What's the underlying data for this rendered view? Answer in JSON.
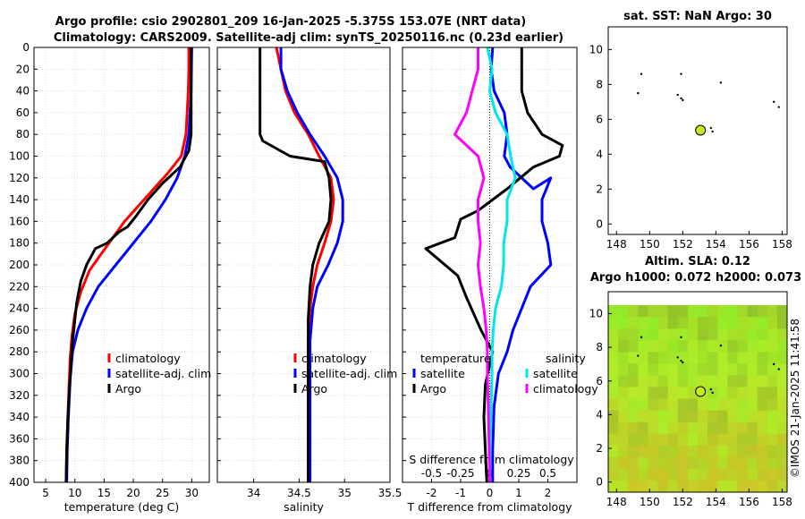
{
  "figure": {
    "title_line1": "Argo profile: csio 2902801_209 16-Jan-2025 -5.375S 153.07E (NRT data)",
    "title_line2": "Climatology: CARS2009. Satellite-adj clim: synTS_20250116.nc (0.23d earlier)",
    "side_label": "©IMOS 21-Jan-2025 11:41:58"
  },
  "colors": {
    "climatology": "#ff0000",
    "satellite": "#0000ff",
    "argo": "#000000",
    "s_satellite": "#00e5ee",
    "s_climatology": "#ff00ff",
    "marker": "#c8e820",
    "map_fill": "#b4e62a"
  },
  "chart_data": [
    {
      "type": "line",
      "id": "temperature",
      "xlabel": "temperature (deg C)",
      "ylabel": "",
      "xlim": [
        3,
        33
      ],
      "ylim": [
        400,
        0
      ],
      "xticks": [
        "5",
        "10",
        "15",
        "20",
        "25",
        "30"
      ],
      "yticks": [
        "0",
        "20",
        "40",
        "60",
        "80",
        "100",
        "120",
        "140",
        "160",
        "180",
        "200",
        "220",
        "240",
        "260",
        "280",
        "300",
        "320",
        "340",
        "360",
        "380",
        "400"
      ],
      "legend": [
        "climatology",
        "satellite-adj. clim",
        "Argo"
      ],
      "series": [
        {
          "name": "climatology",
          "color_key": "climatology",
          "points": [
            [
              29.5,
              0
            ],
            [
              29.5,
              20
            ],
            [
              29.4,
              40
            ],
            [
              29.2,
              60
            ],
            [
              29.0,
              80
            ],
            [
              28.2,
              100
            ],
            [
              26,
              115
            ],
            [
              23.5,
              130
            ],
            [
              21,
              145
            ],
            [
              18.5,
              160
            ],
            [
              16.5,
              175
            ],
            [
              14.5,
              190
            ],
            [
              12.5,
              205
            ],
            [
              11,
              225
            ],
            [
              10,
              245
            ],
            [
              9.5,
              265
            ],
            [
              9.2,
              285
            ],
            [
              9.0,
              310
            ],
            [
              8.8,
              340
            ],
            [
              8.6,
              370
            ],
            [
              8.5,
              400
            ]
          ]
        },
        {
          "name": "satellite-adj. clim",
          "color_key": "satellite",
          "points": [
            [
              30.0,
              0
            ],
            [
              29.9,
              40
            ],
            [
              29.7,
              60
            ],
            [
              29.5,
              80
            ],
            [
              28.8,
              100
            ],
            [
              27.5,
              120
            ],
            [
              25.5,
              140
            ],
            [
              23,
              160
            ],
            [
              20,
              180
            ],
            [
              17,
              200
            ],
            [
              14,
              220
            ],
            [
              12,
              240
            ],
            [
              10.5,
              260
            ],
            [
              9.6,
              280
            ],
            [
              9.2,
              305
            ],
            [
              8.9,
              340
            ],
            [
              8.7,
              370
            ],
            [
              8.6,
              400
            ]
          ]
        },
        {
          "name": "Argo",
          "color_key": "argo",
          "points": [
            [
              29.9,
              0
            ],
            [
              29.9,
              20
            ],
            [
              29.9,
              40
            ],
            [
              29.9,
              60
            ],
            [
              29.9,
              80
            ],
            [
              29.5,
              95
            ],
            [
              28,
              110
            ],
            [
              25,
              125
            ],
            [
              22.5,
              140
            ],
            [
              20.5,
              155
            ],
            [
              19,
              165
            ],
            [
              17.5,
              170
            ],
            [
              15.5,
              180
            ],
            [
              13.5,
              185
            ],
            [
              12,
              200
            ],
            [
              11,
              215
            ],
            [
              10.3,
              235
            ],
            [
              9.9,
              255
            ],
            [
              9.6,
              270
            ],
            [
              9.4,
              285
            ],
            [
              9.1,
              310
            ],
            [
              8.8,
              340
            ],
            [
              8.6,
              370
            ],
            [
              8.5,
              400
            ]
          ]
        }
      ]
    },
    {
      "type": "line",
      "id": "salinity",
      "xlabel": "salinity",
      "ylabel": "",
      "xlim": [
        33.6,
        35.5
      ],
      "ylim": [
        400,
        0
      ],
      "xticks": [
        "34",
        "34.5",
        "35",
        "35.5"
      ],
      "legend": [
        "climatology",
        "satellite-adj. clim",
        "Argo"
      ],
      "series": [
        {
          "name": "climatology",
          "color_key": "climatology",
          "points": [
            [
              34.25,
              0
            ],
            [
              34.3,
              20
            ],
            [
              34.35,
              40
            ],
            [
              34.45,
              60
            ],
            [
              34.6,
              80
            ],
            [
              34.72,
              100
            ],
            [
              34.85,
              120
            ],
            [
              34.88,
              140
            ],
            [
              34.85,
              160
            ],
            [
              34.78,
              180
            ],
            [
              34.7,
              200
            ],
            [
              34.65,
              220
            ],
            [
              34.62,
              240
            ],
            [
              34.6,
              270
            ],
            [
              34.6,
              300
            ],
            [
              34.6,
              340
            ],
            [
              34.6,
              400
            ]
          ]
        },
        {
          "name": "satellite-adj. clim",
          "color_key": "satellite",
          "points": [
            [
              34.3,
              0
            ],
            [
              34.3,
              20
            ],
            [
              34.37,
              40
            ],
            [
              34.48,
              60
            ],
            [
              34.62,
              80
            ],
            [
              34.78,
              100
            ],
            [
              34.92,
              120
            ],
            [
              34.98,
              140
            ],
            [
              34.98,
              160
            ],
            [
              34.92,
              180
            ],
            [
              34.82,
              200
            ],
            [
              34.7,
              220
            ],
            [
              34.65,
              240
            ],
            [
              34.62,
              270
            ],
            [
              34.62,
              300
            ],
            [
              34.62,
              340
            ],
            [
              34.62,
              400
            ]
          ]
        },
        {
          "name": "Argo",
          "color_key": "argo",
          "points": [
            [
              34.07,
              0
            ],
            [
              34.07,
              20
            ],
            [
              34.07,
              40
            ],
            [
              34.07,
              60
            ],
            [
              34.07,
              80
            ],
            [
              34.1,
              86
            ],
            [
              34.4,
              100
            ],
            [
              34.78,
              105
            ],
            [
              34.83,
              120
            ],
            [
              34.85,
              140
            ],
            [
              34.83,
              160
            ],
            [
              34.72,
              180
            ],
            [
              34.65,
              200
            ],
            [
              34.62,
              220
            ],
            [
              34.6,
              250
            ],
            [
              34.6,
              280
            ],
            [
              34.6,
              320
            ],
            [
              34.6,
              360
            ],
            [
              34.6,
              400
            ]
          ]
        }
      ]
    },
    {
      "type": "line",
      "id": "differences",
      "xlabel": "T difference from climatology",
      "ylabel": "",
      "xlim": [
        -3,
        3
      ],
      "ylim": [
        400,
        0
      ],
      "xticks": [
        "-2",
        "-1",
        "0",
        "1",
        "2"
      ],
      "top_axis_label": "S difference from climatology",
      "top_xticks": [
        "-0.5",
        "-0.25",
        "0",
        "0.25",
        "0.5"
      ],
      "top_xlim": [
        -0.75,
        0.75
      ],
      "legend_temperature_title": "temperature",
      "legend_salinity_title": "salinity",
      "legend_temperature": [
        "satellite",
        "Argo"
      ],
      "legend_salinity": [
        "satellite",
        "climatology"
      ],
      "series": [
        {
          "name": "T satellite",
          "color_key": "satellite",
          "points": [
            [
              0.1,
              0
            ],
            [
              0.05,
              20
            ],
            [
              0.15,
              40
            ],
            [
              0.5,
              60
            ],
            [
              0.6,
              80
            ],
            [
              0.5,
              100
            ],
            [
              0.7,
              110
            ],
            [
              1.5,
              130
            ],
            [
              2.1,
              120
            ],
            [
              1.8,
              140
            ],
            [
              1.8,
              160
            ],
            [
              2.0,
              180
            ],
            [
              2.1,
              200
            ],
            [
              1.4,
              220
            ],
            [
              1.1,
              240
            ],
            [
              0.8,
              260
            ],
            [
              0.6,
              280
            ],
            [
              0.3,
              300
            ],
            [
              0.15,
              330
            ],
            [
              0.1,
              370
            ],
            [
              0.1,
              400
            ]
          ]
        },
        {
          "name": "T Argo",
          "color_key": "argo",
          "points": [
            [
              1.1,
              0
            ],
            [
              1.1,
              20
            ],
            [
              1.1,
              40
            ],
            [
              1.3,
              60
            ],
            [
              1.8,
              80
            ],
            [
              2.5,
              90
            ],
            [
              2.4,
              100
            ],
            [
              1.5,
              110
            ],
            [
              0.6,
              130
            ],
            [
              -0.4,
              150
            ],
            [
              -1.0,
              158
            ],
            [
              -1.2,
              175
            ],
            [
              -2.2,
              185
            ],
            [
              -1.1,
              210
            ],
            [
              -0.8,
              230
            ],
            [
              -0.3,
              260
            ],
            [
              0.1,
              280
            ],
            [
              -0.15,
              310
            ],
            [
              -0.2,
              340
            ],
            [
              -0.15,
              370
            ],
            [
              -0.1,
              400
            ]
          ]
        },
        {
          "name": "S satellite",
          "color_key": "s_satellite",
          "points": [
            [
              -0.02,
              0
            ],
            [
              0.02,
              20
            ],
            [
              0.0,
              40
            ],
            [
              0.05,
              60
            ],
            [
              0.15,
              80
            ],
            [
              0.18,
              100
            ],
            [
              0.22,
              120
            ],
            [
              0.15,
              140
            ],
            [
              0.15,
              160
            ],
            [
              0.12,
              180
            ],
            [
              0.12,
              200
            ],
            [
              0.1,
              220
            ],
            [
              0.05,
              240
            ],
            [
              0.03,
              260
            ],
            [
              0.02,
              280
            ],
            [
              0.02,
              300
            ],
            [
              0.01,
              340
            ],
            [
              0.0,
              400
            ]
          ]
        },
        {
          "name": "S climatology",
          "color_key": "s_climatology",
          "points": [
            [
              -0.1,
              0
            ],
            [
              -0.1,
              20
            ],
            [
              -0.15,
              40
            ],
            [
              -0.2,
              60
            ],
            [
              -0.3,
              80
            ],
            [
              -0.1,
              100
            ],
            [
              -0.05,
              120
            ],
            [
              -0.1,
              140
            ],
            [
              -0.1,
              160
            ],
            [
              -0.08,
              180
            ],
            [
              -0.1,
              200
            ],
            [
              -0.08,
              220
            ],
            [
              -0.05,
              240
            ],
            [
              -0.03,
              260
            ],
            [
              -0.02,
              280
            ],
            [
              -0.02,
              300
            ],
            [
              -0.01,
              340
            ],
            [
              0.0,
              400
            ]
          ]
        }
      ]
    },
    {
      "type": "scatter",
      "id": "sat_sst_map",
      "title": "sat. SST: NaN Argo: 30",
      "xlim": [
        147.5,
        158.3
      ],
      "ylim": [
        -0.6,
        11.3
      ],
      "xticks": [
        "148",
        "150",
        "152",
        "154",
        "156",
        "158"
      ],
      "yticks": [
        "0",
        "2",
        "4",
        "6",
        "8",
        "10"
      ],
      "profile_location": [
        153.07,
        5.375
      ],
      "dots": [
        [
          149.5,
          8.6
        ],
        [
          149.3,
          7.5
        ],
        [
          151.9,
          8.6
        ],
        [
          151.7,
          7.4
        ],
        [
          151.9,
          7.2
        ],
        [
          152.0,
          7.1
        ],
        [
          154.3,
          8.1
        ],
        [
          153.7,
          5.5
        ],
        [
          153.8,
          5.3
        ],
        [
          157.5,
          7.0
        ],
        [
          157.8,
          6.7
        ]
      ]
    },
    {
      "type": "heatmap",
      "id": "altimetry_map",
      "title": "Altim. SLA: 0.12",
      "subtitle": "Argo h1000: 0.072 h2000: 0.073",
      "xlim": [
        147.5,
        158.3
      ],
      "ylim": [
        -0.6,
        11.3
      ],
      "xticks": [
        "148",
        "150",
        "152",
        "154",
        "156",
        "158"
      ],
      "yticks": [
        "0",
        "2",
        "4",
        "6",
        "8",
        "10"
      ],
      "data_extent": [
        147.5,
        158.3,
        -0.6,
        10.5
      ],
      "profile_location": [
        153.07,
        5.375
      ]
    }
  ]
}
